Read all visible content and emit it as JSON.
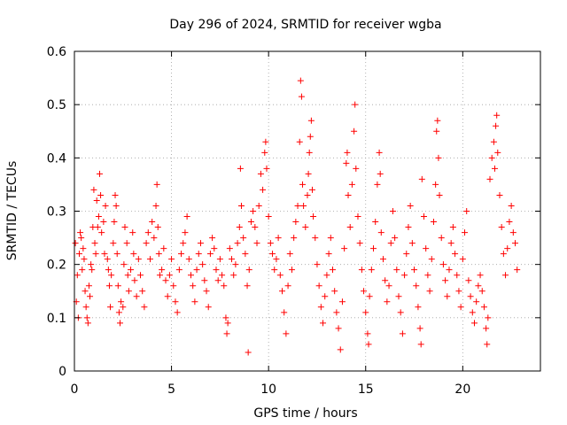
{
  "chart_data": {
    "type": "scatter",
    "title": "Day 296 of 2024, SRMTID for receiver wgba",
    "xlabel": "GPS time / hours",
    "ylabel": "SRMTID / TECUs",
    "xlim": [
      0,
      24
    ],
    "ylim": [
      0,
      0.6
    ],
    "xticks": [
      "0",
      "5",
      "10",
      "15",
      "20"
    ],
    "yticks": [
      "0",
      "0.1",
      "0.2",
      "0.3",
      "0.4",
      "0.5",
      "0.6"
    ],
    "grid": true,
    "marker": "+",
    "color": "#ff0000",
    "series": [
      {
        "name": "SRMTID",
        "points": [
          [
            0.05,
            0.24
          ],
          [
            0.1,
            0.13
          ],
          [
            0.15,
            0.18
          ],
          [
            0.2,
            0.1
          ],
          [
            0.25,
            0.22
          ],
          [
            0.3,
            0.26
          ],
          [
            0.35,
            0.25
          ],
          [
            0.4,
            0.19
          ],
          [
            0.45,
            0.23
          ],
          [
            0.5,
            0.21
          ],
          [
            0.55,
            0.15
          ],
          [
            0.6,
            0.12
          ],
          [
            0.65,
            0.1
          ],
          [
            0.7,
            0.09
          ],
          [
            0.75,
            0.16
          ],
          [
            0.8,
            0.14
          ],
          [
            0.85,
            0.2
          ],
          [
            0.9,
            0.19
          ],
          [
            0.95,
            0.27
          ],
          [
            1.0,
            0.34
          ],
          [
            1.05,
            0.24
          ],
          [
            1.1,
            0.22
          ],
          [
            1.15,
            0.32
          ],
          [
            1.2,
            0.27
          ],
          [
            1.25,
            0.29
          ],
          [
            1.3,
            0.37
          ],
          [
            1.35,
            0.33
          ],
          [
            1.4,
            0.26
          ],
          [
            1.5,
            0.28
          ],
          [
            1.55,
            0.22
          ],
          [
            1.6,
            0.31
          ],
          [
            1.7,
            0.21
          ],
          [
            1.75,
            0.19
          ],
          [
            1.8,
            0.16
          ],
          [
            1.85,
            0.12
          ],
          [
            1.9,
            0.18
          ],
          [
            2.0,
            0.24
          ],
          [
            2.05,
            0.28
          ],
          [
            2.1,
            0.33
          ],
          [
            2.15,
            0.31
          ],
          [
            2.2,
            0.22
          ],
          [
            2.25,
            0.16
          ],
          [
            2.3,
            0.11
          ],
          [
            2.35,
            0.09
          ],
          [
            2.4,
            0.13
          ],
          [
            2.5,
            0.12
          ],
          [
            2.55,
            0.2
          ],
          [
            2.6,
            0.27
          ],
          [
            2.7,
            0.24
          ],
          [
            2.75,
            0.18
          ],
          [
            2.8,
            0.15
          ],
          [
            2.9,
            0.19
          ],
          [
            3.0,
            0.26
          ],
          [
            3.05,
            0.22
          ],
          [
            3.1,
            0.17
          ],
          [
            3.2,
            0.14
          ],
          [
            3.3,
            0.21
          ],
          [
            3.4,
            0.18
          ],
          [
            3.5,
            0.15
          ],
          [
            3.6,
            0.12
          ],
          [
            3.7,
            0.24
          ],
          [
            3.8,
            0.26
          ],
          [
            3.9,
            0.21
          ],
          [
            4.0,
            0.28
          ],
          [
            4.1,
            0.25
          ],
          [
            4.2,
            0.31
          ],
          [
            4.25,
            0.35
          ],
          [
            4.3,
            0.27
          ],
          [
            4.35,
            0.22
          ],
          [
            4.4,
            0.18
          ],
          [
            4.5,
            0.19
          ],
          [
            4.6,
            0.23
          ],
          [
            4.7,
            0.17
          ],
          [
            4.8,
            0.14
          ],
          [
            4.9,
            0.18
          ],
          [
            5.0,
            0.21
          ],
          [
            5.1,
            0.16
          ],
          [
            5.2,
            0.13
          ],
          [
            5.3,
            0.11
          ],
          [
            5.4,
            0.19
          ],
          [
            5.5,
            0.22
          ],
          [
            5.6,
            0.24
          ],
          [
            5.7,
            0.26
          ],
          [
            5.8,
            0.29
          ],
          [
            5.9,
            0.21
          ],
          [
            6.0,
            0.18
          ],
          [
            6.1,
            0.16
          ],
          [
            6.2,
            0.13
          ],
          [
            6.3,
            0.19
          ],
          [
            6.4,
            0.22
          ],
          [
            6.5,
            0.24
          ],
          [
            6.6,
            0.2
          ],
          [
            6.7,
            0.17
          ],
          [
            6.8,
            0.15
          ],
          [
            6.9,
            0.12
          ],
          [
            7.0,
            0.22
          ],
          [
            7.1,
            0.25
          ],
          [
            7.2,
            0.23
          ],
          [
            7.3,
            0.19
          ],
          [
            7.4,
            0.17
          ],
          [
            7.5,
            0.21
          ],
          [
            7.6,
            0.18
          ],
          [
            7.7,
            0.16
          ],
          [
            7.8,
            0.1
          ],
          [
            7.85,
            0.07
          ],
          [
            7.9,
            0.09
          ],
          [
            8.0,
            0.23
          ],
          [
            8.1,
            0.21
          ],
          [
            8.2,
            0.18
          ],
          [
            8.3,
            0.2
          ],
          [
            8.4,
            0.24
          ],
          [
            8.5,
            0.27
          ],
          [
            8.55,
            0.38
          ],
          [
            8.6,
            0.31
          ],
          [
            8.7,
            0.25
          ],
          [
            8.8,
            0.22
          ],
          [
            8.9,
            0.16
          ],
          [
            8.95,
            0.035
          ],
          [
            9.0,
            0.19
          ],
          [
            9.1,
            0.28
          ],
          [
            9.2,
            0.3
          ],
          [
            9.3,
            0.27
          ],
          [
            9.4,
            0.24
          ],
          [
            9.5,
            0.31
          ],
          [
            9.6,
            0.37
          ],
          [
            9.7,
            0.34
          ],
          [
            9.8,
            0.41
          ],
          [
            9.85,
            0.43
          ],
          [
            9.9,
            0.38
          ],
          [
            10.0,
            0.29
          ],
          [
            10.1,
            0.24
          ],
          [
            10.2,
            0.22
          ],
          [
            10.3,
            0.19
          ],
          [
            10.4,
            0.21
          ],
          [
            10.5,
            0.25
          ],
          [
            10.6,
            0.18
          ],
          [
            10.7,
            0.15
          ],
          [
            10.8,
            0.11
          ],
          [
            10.9,
            0.07
          ],
          [
            11.0,
            0.16
          ],
          [
            11.1,
            0.22
          ],
          [
            11.2,
            0.19
          ],
          [
            11.3,
            0.25
          ],
          [
            11.4,
            0.28
          ],
          [
            11.5,
            0.31
          ],
          [
            11.6,
            0.43
          ],
          [
            11.65,
            0.545
          ],
          [
            11.7,
            0.515
          ],
          [
            11.75,
            0.35
          ],
          [
            11.8,
            0.31
          ],
          [
            11.9,
            0.27
          ],
          [
            12.0,
            0.33
          ],
          [
            12.05,
            0.37
          ],
          [
            12.1,
            0.41
          ],
          [
            12.15,
            0.44
          ],
          [
            12.2,
            0.47
          ],
          [
            12.25,
            0.34
          ],
          [
            12.3,
            0.29
          ],
          [
            12.4,
            0.25
          ],
          [
            12.5,
            0.2
          ],
          [
            12.6,
            0.16
          ],
          [
            12.7,
            0.12
          ],
          [
            12.8,
            0.09
          ],
          [
            12.9,
            0.14
          ],
          [
            13.0,
            0.18
          ],
          [
            13.1,
            0.22
          ],
          [
            13.2,
            0.25
          ],
          [
            13.3,
            0.19
          ],
          [
            13.4,
            0.15
          ],
          [
            13.5,
            0.11
          ],
          [
            13.6,
            0.08
          ],
          [
            13.7,
            0.04
          ],
          [
            13.8,
            0.13
          ],
          [
            13.9,
            0.23
          ],
          [
            14.0,
            0.39
          ],
          [
            14.05,
            0.41
          ],
          [
            14.1,
            0.33
          ],
          [
            14.2,
            0.27
          ],
          [
            14.3,
            0.35
          ],
          [
            14.4,
            0.45
          ],
          [
            14.45,
            0.5
          ],
          [
            14.5,
            0.38
          ],
          [
            14.6,
            0.29
          ],
          [
            14.7,
            0.24
          ],
          [
            14.8,
            0.19
          ],
          [
            14.9,
            0.15
          ],
          [
            15.0,
            0.11
          ],
          [
            15.1,
            0.07
          ],
          [
            15.15,
            0.05
          ],
          [
            15.2,
            0.14
          ],
          [
            15.3,
            0.19
          ],
          [
            15.4,
            0.23
          ],
          [
            15.5,
            0.28
          ],
          [
            15.6,
            0.35
          ],
          [
            15.7,
            0.41
          ],
          [
            15.75,
            0.37
          ],
          [
            15.8,
            0.26
          ],
          [
            15.9,
            0.21
          ],
          [
            16.0,
            0.17
          ],
          [
            16.1,
            0.13
          ],
          [
            16.2,
            0.16
          ],
          [
            16.3,
            0.24
          ],
          [
            16.4,
            0.3
          ],
          [
            16.5,
            0.25
          ],
          [
            16.6,
            0.19
          ],
          [
            16.7,
            0.14
          ],
          [
            16.8,
            0.11
          ],
          [
            16.9,
            0.07
          ],
          [
            17.0,
            0.18
          ],
          [
            17.1,
            0.22
          ],
          [
            17.2,
            0.27
          ],
          [
            17.3,
            0.31
          ],
          [
            17.4,
            0.24
          ],
          [
            17.5,
            0.19
          ],
          [
            17.6,
            0.16
          ],
          [
            17.7,
            0.12
          ],
          [
            17.8,
            0.08
          ],
          [
            17.85,
            0.05
          ],
          [
            17.9,
            0.36
          ],
          [
            18.0,
            0.29
          ],
          [
            18.1,
            0.23
          ],
          [
            18.2,
            0.18
          ],
          [
            18.3,
            0.15
          ],
          [
            18.4,
            0.21
          ],
          [
            18.5,
            0.28
          ],
          [
            18.6,
            0.35
          ],
          [
            18.65,
            0.45
          ],
          [
            18.7,
            0.47
          ],
          [
            18.75,
            0.4
          ],
          [
            18.8,
            0.33
          ],
          [
            18.9,
            0.25
          ],
          [
            19.0,
            0.2
          ],
          [
            19.1,
            0.17
          ],
          [
            19.2,
            0.14
          ],
          [
            19.3,
            0.19
          ],
          [
            19.4,
            0.24
          ],
          [
            19.5,
            0.27
          ],
          [
            19.6,
            0.22
          ],
          [
            19.7,
            0.18
          ],
          [
            19.8,
            0.15
          ],
          [
            19.9,
            0.12
          ],
          [
            20.0,
            0.21
          ],
          [
            20.1,
            0.26
          ],
          [
            20.2,
            0.3
          ],
          [
            20.3,
            0.17
          ],
          [
            20.4,
            0.14
          ],
          [
            20.5,
            0.11
          ],
          [
            20.6,
            0.09
          ],
          [
            20.7,
            0.13
          ],
          [
            20.8,
            0.16
          ],
          [
            20.9,
            0.18
          ],
          [
            21.0,
            0.15
          ],
          [
            21.1,
            0.12
          ],
          [
            21.2,
            0.08
          ],
          [
            21.25,
            0.05
          ],
          [
            21.3,
            0.1
          ],
          [
            21.4,
            0.36
          ],
          [
            21.5,
            0.4
          ],
          [
            21.6,
            0.43
          ],
          [
            21.65,
            0.38
          ],
          [
            21.7,
            0.46
          ],
          [
            21.75,
            0.48
          ],
          [
            21.8,
            0.41
          ],
          [
            21.9,
            0.33
          ],
          [
            22.0,
            0.27
          ],
          [
            22.1,
            0.22
          ],
          [
            22.2,
            0.18
          ],
          [
            22.3,
            0.23
          ],
          [
            22.4,
            0.28
          ],
          [
            22.5,
            0.31
          ],
          [
            22.6,
            0.26
          ],
          [
            22.7,
            0.24
          ],
          [
            22.8,
            0.19
          ]
        ]
      }
    ]
  }
}
